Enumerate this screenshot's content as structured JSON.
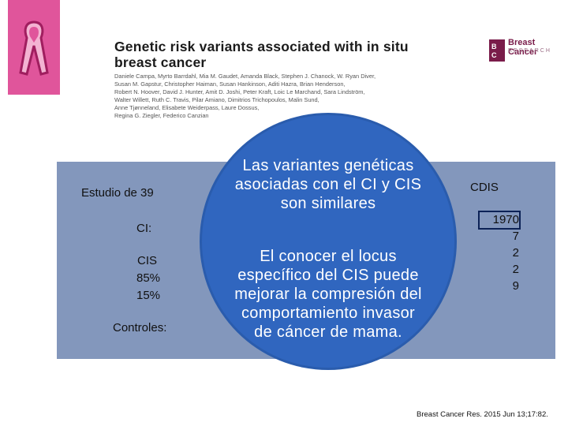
{
  "header": {
    "paper_title_line1": "Genetic risk variants associated with in situ",
    "paper_title_line2": "breast cancer",
    "journal_logo_line1": "Breast Cancer",
    "journal_logo_line2": "RESEARCH",
    "authors": [
      "Daniele Campa, Myrto Barrdahl, Mia M. Gaudet, Amanda Black, Stephen J. Chanock, W. Ryan Diver,",
      "Susan M. Gapstur, Christopher Haiman, Susan Hankinson, Aditi Hazra, Brian Henderson,",
      "Robert N. Hoover, David J. Hunter, Amit D. Joshi, Peter Kraft, Loic Le Marchand, Sara Lindström,",
      "Walter Willett, Ruth C. Travis, Pilar Amiano, Dimitrios Trichopoulos, Malin Sund,",
      "Anne Tjønneland, Elisabete Weiderpass, Laure Dossus,",
      "Regina G. Ziegler, Federico Canzian"
    ]
  },
  "panel": {
    "study_text": "Estudio de 39 ",
    "ci_label": "CI:",
    "cis_label": "CIS",
    "pct_85": "85%",
    "pct_15": "15%",
    "controls_label": "Controles:",
    "cdis_label": "CDIS",
    "right_values": [
      "1970",
      "7",
      "2",
      "2",
      "9"
    ]
  },
  "callout": {
    "heading_line1": "Las variantes genéticas",
    "heading_line2": "asociadas con el CI y CIS",
    "heading_line3": "son similares",
    "body_line1": "El conocer el locus",
    "body_line2": "específico del CIS puede",
    "body_line3": "mejorar la compresión del",
    "body_line4": "comportamiento  invasor",
    "body_line5": "de cáncer de mama."
  },
  "citation": "Breast Cancer Res. 2015 Jun 13;17:82.",
  "colors": {
    "ribbon_bg": "#e0559b",
    "panel_bg": "#8397bc",
    "circle_bg": "#3066bf"
  }
}
